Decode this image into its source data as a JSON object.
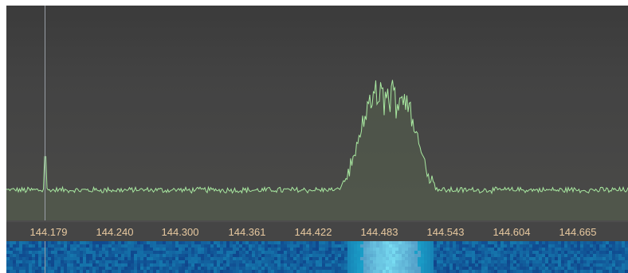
{
  "display": {
    "frequency_labels": [
      "144.179",
      "144.240",
      "144.300",
      "144.361",
      "144.422",
      "144.483",
      "144.543",
      "144.604",
      "144.665"
    ],
    "colors": {
      "background": "#4d4d4d",
      "trace": "#a8e8a0",
      "trace_fill": "#56614f",
      "label": "#e8c9a0",
      "cursor": "#9aa0a8",
      "waterfall_base": "#0c2f8a",
      "waterfall_hot": "#8ff0ff"
    }
  },
  "chart_data": {
    "type": "line",
    "x_tick_labels": [
      "144.179",
      "144.240",
      "144.300",
      "144.361",
      "144.422",
      "144.483",
      "144.543",
      "144.604",
      "144.665"
    ],
    "xlim": [
      144.143,
      144.706
    ],
    "y_relative_range": [
      0,
      1
    ],
    "signals": [
      {
        "center_mhz": 144.489,
        "bandwidth_mhz": 0.06,
        "relative_peak_level": 0.72
      },
      {
        "center_mhz": 144.178,
        "bandwidth_mhz": 0.001,
        "relative_peak_level": 0.34
      }
    ],
    "noise_floor_level": 0.15,
    "grid": false,
    "legend": "none",
    "cursor_mhz": 144.178
  }
}
